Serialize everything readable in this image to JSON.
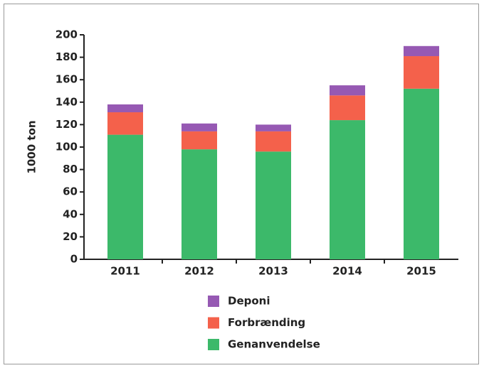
{
  "chart_data": {
    "type": "stacked_bar",
    "y_label": "1000 ton",
    "categories": [
      "2011",
      "2012",
      "2013",
      "2014",
      "2015"
    ],
    "series": [
      {
        "name": "Deponi",
        "color": "#9659b3",
        "values": [
          7,
          7,
          6,
          9,
          9
        ]
      },
      {
        "name": "Forbrænding",
        "color": "#f4614b",
        "values": [
          20,
          16,
          18,
          22,
          29
        ]
      },
      {
        "name": "Genanvendelse",
        "color": "#3cb96a",
        "values": [
          111,
          98,
          96,
          124,
          152
        ]
      }
    ],
    "ylim": [
      0,
      200
    ],
    "yticks": [
      0,
      20,
      40,
      60,
      80,
      100,
      120,
      140,
      160,
      180,
      200
    ]
  }
}
